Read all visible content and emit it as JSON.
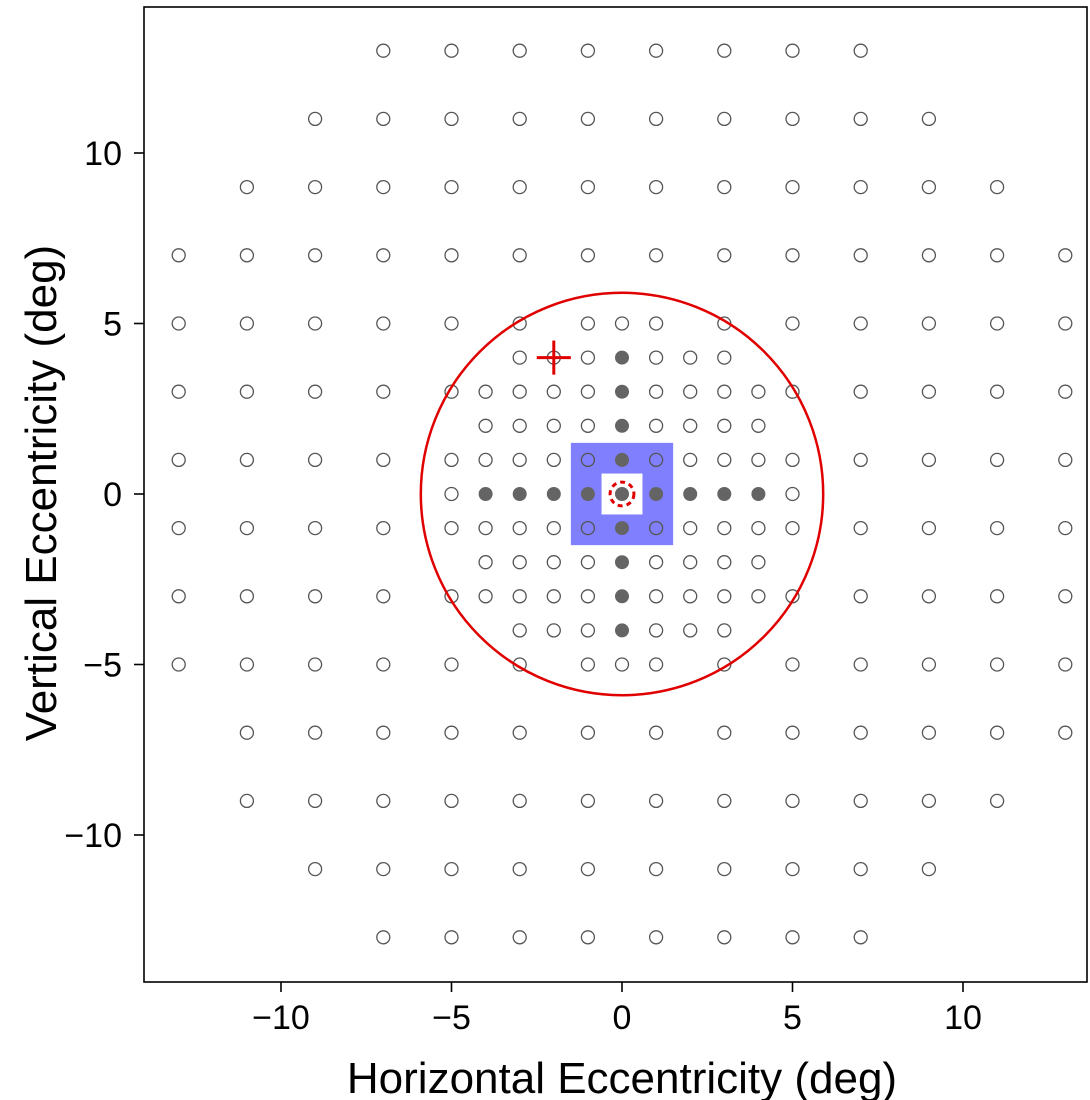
{
  "chart_data": {
    "type": "scatter",
    "title": "",
    "xlabel": "Horizontal Eccentricity (deg)",
    "ylabel": "Vertical Eccentricity (deg)",
    "xlim": [
      -14.3,
      14.0
    ],
    "ylim": [
      -14.3,
      14.0
    ],
    "xticks": [
      -10,
      -5,
      0,
      5,
      10
    ],
    "yticks": [
      -10,
      -5,
      0,
      5,
      10
    ],
    "xtick_labels": [
      "−10",
      "−5",
      "0",
      "5",
      "10"
    ],
    "ytick_labels": [
      "−10",
      "−5",
      "0",
      "5",
      "10"
    ],
    "grid": false,
    "legend": "none",
    "colors": {
      "open_point": "#555555",
      "filled_point": "#646464",
      "highlight": "#e00000",
      "region_fill": "#8080ff"
    },
    "series": [
      {
        "marker": "open-circle",
        "rows": [
          {
            "y": 13,
            "x": [
              -7,
              -5,
              -3,
              -1,
              1,
              3,
              5,
              7
            ]
          },
          {
            "y": 11,
            "x": [
              -9,
              -7,
              -5,
              -3,
              -1,
              1,
              3,
              5,
              7,
              9
            ]
          },
          {
            "y": 9,
            "x": [
              -11,
              -9,
              -7,
              -5,
              -3,
              -1,
              1,
              3,
              5,
              7,
              9,
              11
            ]
          },
          {
            "y": 7,
            "x": [
              -13,
              -11,
              -9,
              -7,
              -5,
              -3,
              -1,
              1,
              3,
              5,
              7,
              9,
              11,
              13
            ]
          },
          {
            "y": 5,
            "x": [
              -13,
              -11,
              -9,
              -7,
              -5,
              -3,
              -1,
              0,
              1,
              3,
              5,
              7,
              9,
              11,
              13
            ]
          },
          {
            "y": 4,
            "x": [
              -3,
              -2,
              -1,
              1,
              2,
              3
            ]
          },
          {
            "y": 3,
            "x": [
              -13,
              -11,
              -9,
              -7,
              -5,
              -4,
              -3,
              -2,
              -1,
              1,
              2,
              3,
              4,
              5,
              7,
              9,
              11,
              13
            ]
          },
          {
            "y": 2,
            "x": [
              -4,
              -3,
              -2,
              -1,
              1,
              2,
              3,
              4
            ]
          },
          {
            "y": 1,
            "x": [
              -13,
              -11,
              -9,
              -7,
              -5,
              -4,
              -3,
              -2,
              -1,
              1,
              2,
              3,
              4,
              5,
              7,
              9,
              11,
              13
            ]
          },
          {
            "y": 0,
            "x": [
              -5,
              5
            ]
          },
          {
            "y": -1,
            "x": [
              -13,
              -11,
              -9,
              -7,
              -5,
              -4,
              -3,
              -2,
              -1,
              1,
              2,
              3,
              4,
              5,
              7,
              9,
              11,
              13
            ]
          },
          {
            "y": -2,
            "x": [
              -4,
              -3,
              -2,
              -1,
              1,
              2,
              3,
              4
            ]
          },
          {
            "y": -3,
            "x": [
              -13,
              -11,
              -9,
              -7,
              -5,
              -4,
              -3,
              -2,
              -1,
              1,
              2,
              3,
              4,
              5,
              7,
              9,
              11,
              13
            ]
          },
          {
            "y": -4,
            "x": [
              -3,
              -2,
              -1,
              1,
              2,
              3
            ]
          },
          {
            "y": -5,
            "x": [
              -13,
              -11,
              -9,
              -7,
              -5,
              -3,
              -1,
              0,
              1,
              3,
              5,
              7,
              9,
              11,
              13
            ]
          },
          {
            "y": -7,
            "x": [
              -11,
              -9,
              -7,
              -5,
              -3,
              -1,
              1,
              3,
              5,
              7,
              9,
              11,
              13
            ]
          },
          {
            "y": -9,
            "x": [
              -11,
              -9,
              -7,
              -5,
              -3,
              -1,
              1,
              3,
              5,
              7,
              9,
              11
            ]
          },
          {
            "y": -11,
            "x": [
              -9,
              -7,
              -5,
              -3,
              -1,
              1,
              3,
              5,
              7,
              9
            ]
          },
          {
            "y": -13,
            "x": [
              -7,
              -5,
              -3,
              -1,
              1,
              3,
              5,
              7
            ]
          }
        ]
      },
      {
        "marker": "filled-circle",
        "rows": [
          {
            "y": 4,
            "x": [
              0
            ]
          },
          {
            "y": 3,
            "x": [
              0
            ]
          },
          {
            "y": 2,
            "x": [
              0
            ]
          },
          {
            "y": 1,
            "x": [
              0
            ]
          },
          {
            "y": 0,
            "x": [
              -4,
              -3,
              -2,
              -1,
              0,
              1,
              2,
              3,
              4
            ]
          },
          {
            "y": -1,
            "x": [
              0
            ]
          },
          {
            "y": -2,
            "x": [
              0
            ]
          },
          {
            "y": -3,
            "x": [
              0
            ]
          },
          {
            "y": -4,
            "x": [
              0
            ]
          }
        ]
      }
    ],
    "annotations": {
      "region": {
        "x": [
          -1.5,
          1.5
        ],
        "y": [
          -1.5,
          1.5
        ],
        "inner_hole": [
          -0.6,
          0.6
        ]
      },
      "circle": {
        "cx": 0,
        "cy": 0,
        "r": 5.9
      },
      "target": {
        "x": 0,
        "y": 0,
        "r": 0.35
      },
      "cross": {
        "x": -2,
        "y": 4,
        "half": 0.5
      }
    }
  }
}
